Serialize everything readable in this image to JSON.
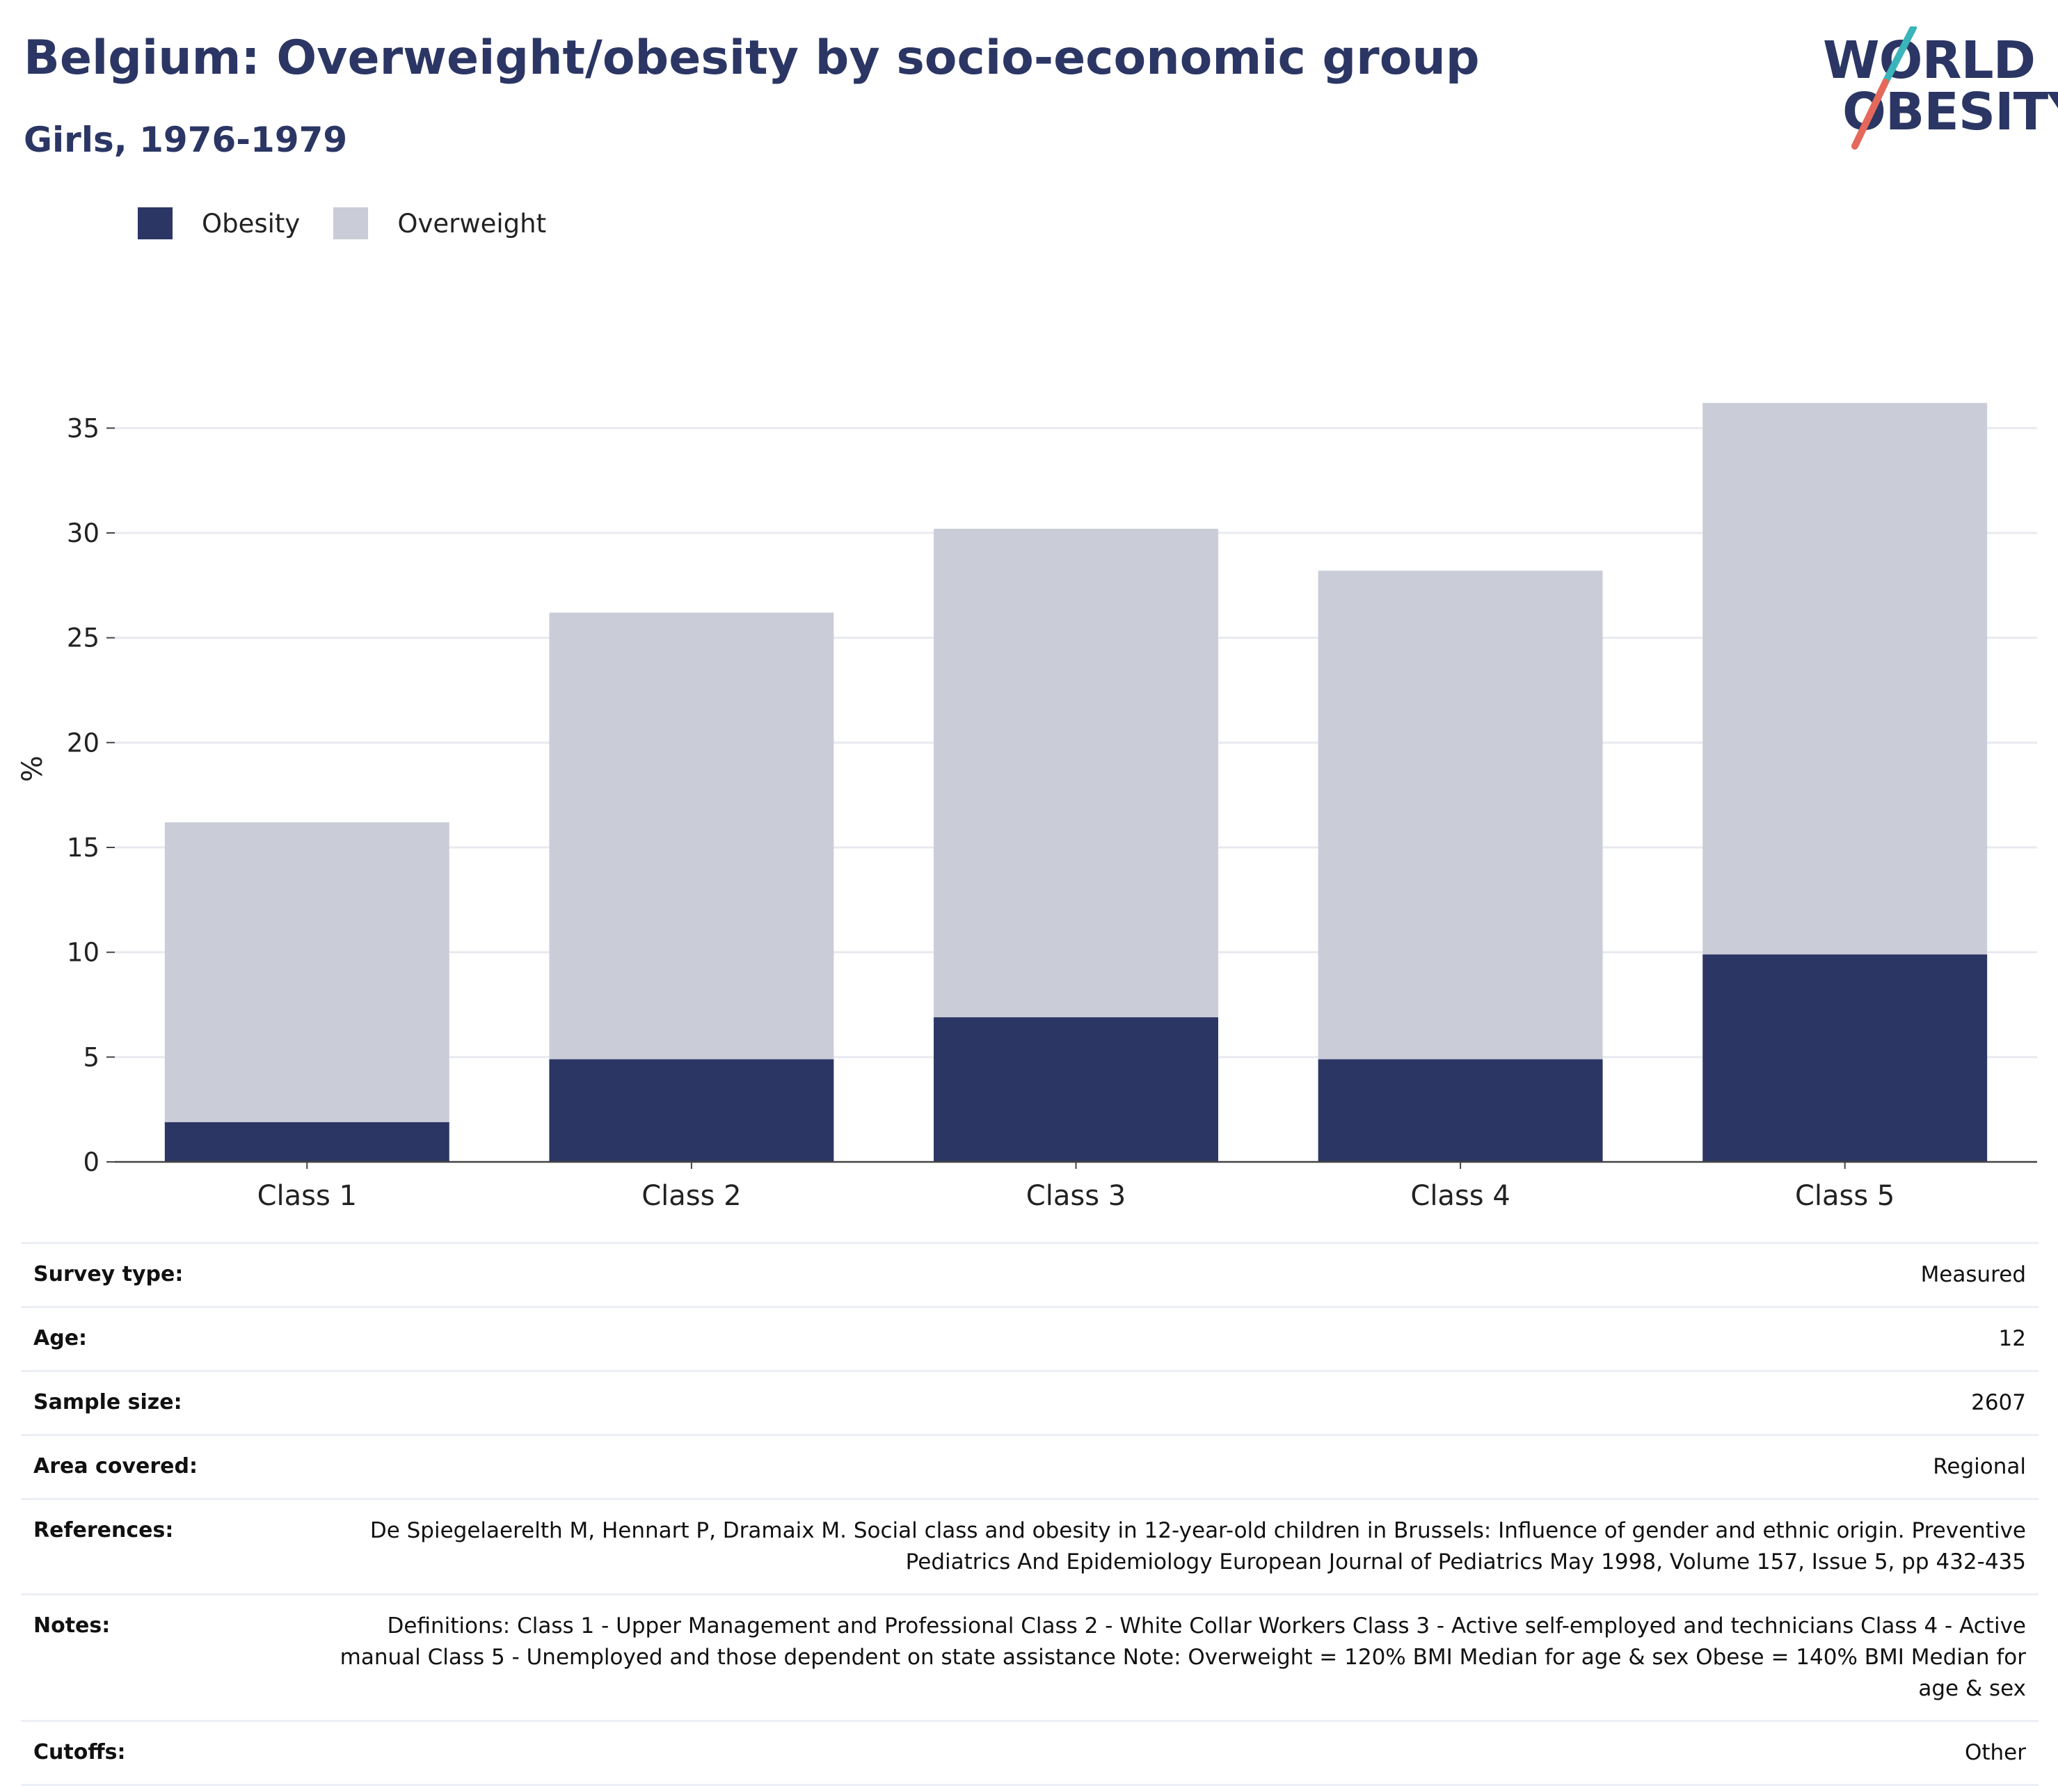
{
  "header": {
    "title": "Belgium: Overweight/obesity by socio-economic group",
    "subtitle": "Girls, 1976-1979"
  },
  "logo": {
    "line1": "WORLD",
    "line2": "OBESITY"
  },
  "legend": [
    {
      "label": "Obesity",
      "color": "#2b3664"
    },
    {
      "label": "Overweight",
      "color": "#cacdd8"
    }
  ],
  "chart_data": {
    "type": "bar",
    "stacked": true,
    "categories": [
      "Class 1",
      "Class 2",
      "Class 3",
      "Class 4",
      "Class 5"
    ],
    "series": [
      {
        "name": "Obesity",
        "color": "#2b3664",
        "values": [
          1.9,
          4.9,
          6.9,
          4.9,
          9.9
        ]
      },
      {
        "name": "Overweight",
        "color": "#cacdd8",
        "values": [
          14.3,
          21.3,
          23.3,
          23.3,
          26.3
        ]
      }
    ],
    "totals": [
      16.2,
      26.2,
      30.2,
      28.2,
      36.2
    ],
    "ylabel": "%",
    "ylim": [
      0,
      37.5
    ],
    "yticks": [
      0,
      5,
      10,
      15,
      20,
      25,
      30,
      35
    ],
    "grid": true,
    "legend_position": "top-left"
  },
  "meta": [
    {
      "key": "Survey type:",
      "value": "Measured"
    },
    {
      "key": "Age:",
      "value": "12"
    },
    {
      "key": "Sample size:",
      "value": "2607"
    },
    {
      "key": "Area covered:",
      "value": "Regional"
    },
    {
      "key": "References:",
      "value": "De Spiegelaerelth M, Hennart P, Dramaix M. Social class and obesity in 12-year-old children in Brussels: Influence of gender and ethnic origin. Preventive Pediatrics And Epidemiology European Journal of Pediatrics May 1998, Volume 157, Issue 5, pp 432-435"
    },
    {
      "key": "Notes:",
      "value": "Definitions: Class 1 - Upper Management and Professional Class 2 - White Collar Workers Class 3 - Active self-employed and technicians Class 4 - Active manual Class 5 - Unemployed and those dependent on state assistance Note: Overweight = 120% BMI Median for age & sex Obese = 140% BMI Median for age & sex"
    },
    {
      "key": "Cutoffs:",
      "value": "Other"
    }
  ]
}
